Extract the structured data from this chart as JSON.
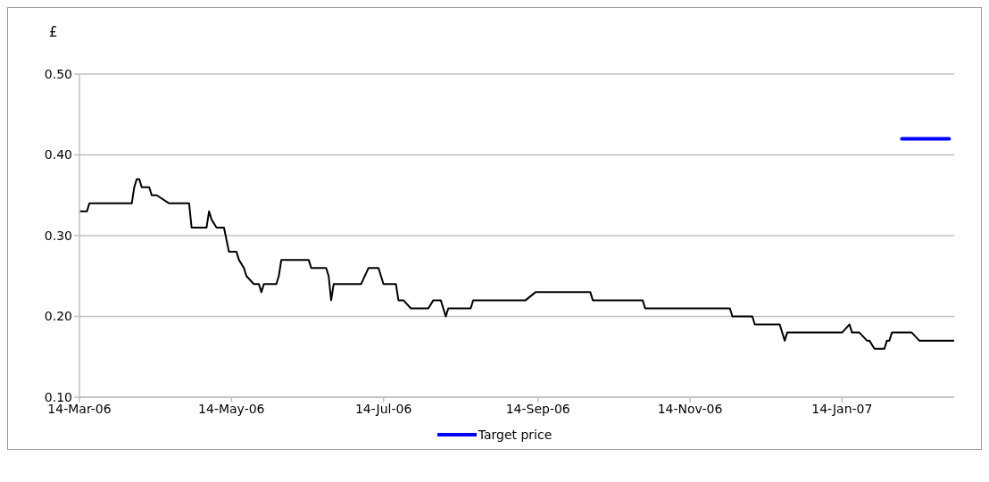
{
  "chart_data": {
    "type": "line",
    "ylabel": "£",
    "xlim": [
      "2006-03-14",
      "2007-02-28"
    ],
    "xticks": [
      {
        "value": "2006-03-14",
        "label": "14-Mar-06"
      },
      {
        "value": "2006-05-14",
        "label": "14-May-06"
      },
      {
        "value": "2006-07-14",
        "label": "14-Jul-06"
      },
      {
        "value": "2006-09-14",
        "label": "14-Sep-06"
      },
      {
        "value": "2006-11-14",
        "label": "14-Nov-06"
      },
      {
        "value": "2007-01-14",
        "label": "14-Jan-07"
      }
    ],
    "ylim": [
      0.1,
      0.5
    ],
    "yticks": [
      {
        "value": 0.1,
        "label": "0.10"
      },
      {
        "value": 0.2,
        "label": "0.20"
      },
      {
        "value": 0.3,
        "label": "0.30"
      },
      {
        "value": 0.4,
        "label": "0.40"
      },
      {
        "value": 0.5,
        "label": "0.50"
      }
    ],
    "grid": "y",
    "legend": "bottom",
    "marker": "none",
    "line_style": "solid",
    "series": [
      {
        "color": "#000000",
        "x": [
          "2006-03-14",
          "2006-03-17",
          "2006-03-18",
          "2006-04-04",
          "2006-04-05",
          "2006-04-06",
          "2006-04-07",
          "2006-04-08",
          "2006-04-11",
          "2006-04-12",
          "2006-04-14",
          "2006-04-19",
          "2006-04-27",
          "2006-04-28",
          "2006-05-04",
          "2006-05-05",
          "2006-05-06",
          "2006-05-08",
          "2006-05-11",
          "2006-05-13",
          "2006-05-16",
          "2006-05-17",
          "2006-05-19",
          "2006-05-20",
          "2006-05-23",
          "2006-05-25",
          "2006-05-26",
          "2006-05-27",
          "2006-06-01",
          "2006-06-02",
          "2006-06-03",
          "2006-06-14",
          "2006-06-15",
          "2006-06-21",
          "2006-06-22",
          "2006-06-23",
          "2006-06-24",
          "2006-07-05",
          "2006-07-08",
          "2006-07-12",
          "2006-07-14",
          "2006-07-19",
          "2006-07-20",
          "2006-07-22",
          "2006-07-25",
          "2006-08-01",
          "2006-08-03",
          "2006-08-06",
          "2006-08-08",
          "2006-08-09",
          "2006-08-18",
          "2006-08-19",
          "2006-09-09",
          "2006-09-13",
          "2006-10-05",
          "2006-10-06",
          "2006-10-26",
          "2006-10-27",
          "2006-11-30",
          "2006-12-01",
          "2006-12-09",
          "2006-12-10",
          "2006-12-20",
          "2006-12-22",
          "2006-12-23",
          "2007-01-14",
          "2007-01-17",
          "2007-01-18",
          "2007-01-21",
          "2007-01-24",
          "2007-01-25",
          "2007-01-27",
          "2007-01-31",
          "2007-02-01",
          "2007-02-02",
          "2007-02-03",
          "2007-02-11",
          "2007-02-14",
          "2007-02-28"
        ],
        "values": [
          0.33,
          0.33,
          0.34,
          0.34,
          0.36,
          0.37,
          0.37,
          0.36,
          0.36,
          0.35,
          0.35,
          0.34,
          0.34,
          0.31,
          0.31,
          0.33,
          0.32,
          0.31,
          0.31,
          0.28,
          0.28,
          0.27,
          0.26,
          0.25,
          0.24,
          0.24,
          0.23,
          0.24,
          0.24,
          0.25,
          0.27,
          0.27,
          0.26,
          0.26,
          0.25,
          0.22,
          0.24,
          0.24,
          0.26,
          0.26,
          0.24,
          0.24,
          0.22,
          0.22,
          0.21,
          0.21,
          0.22,
          0.22,
          0.2,
          0.21,
          0.21,
          0.22,
          0.22,
          0.23,
          0.23,
          0.22,
          0.22,
          0.21,
          0.21,
          0.2,
          0.2,
          0.19,
          0.19,
          0.17,
          0.18,
          0.18,
          0.19,
          0.18,
          0.18,
          0.17,
          0.17,
          0.16,
          0.16,
          0.17,
          0.17,
          0.18,
          0.18,
          0.17,
          0.17
        ]
      },
      {
        "name": "Target price",
        "color": "#0000ff",
        "x": [
          "2007-02-07",
          "2007-02-26"
        ],
        "values": [
          0.42,
          0.42
        ]
      }
    ]
  }
}
